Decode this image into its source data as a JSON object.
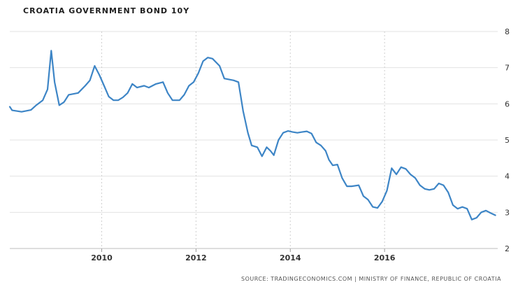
{
  "chart_data": {
    "type": "line",
    "title": "CROATIA GOVERNMENT BOND 10Y",
    "source": "SOURCE: TRADINGECONOMICS.COM | MINISTRY OF FINANCE, REPUBLIC OF CROATIA",
    "xlabel": "",
    "ylabel": "",
    "xlim": [
      2008.05,
      2017.7
    ],
    "ylim": [
      2,
      8
    ],
    "x_ticks": [
      2010,
      2012,
      2014,
      2016
    ],
    "x_tick_labels": [
      "2010",
      "2012",
      "2014",
      "2016"
    ],
    "y_ticks": [
      2,
      3,
      4,
      5,
      6,
      7,
      8
    ],
    "y_tick_labels": [
      "2",
      "3",
      "4",
      "5",
      "6",
      "7",
      "8"
    ],
    "grid": "vertical dashed, horizontal solid",
    "line_color": "#3d85c6",
    "series": [
      {
        "points": [
          [
            2008.05,
            5.92
          ],
          [
            2008.1,
            5.82
          ],
          [
            2008.3,
            5.78
          ],
          [
            2008.5,
            5.83
          ],
          [
            2008.6,
            5.95
          ],
          [
            2008.75,
            6.1
          ],
          [
            2008.85,
            6.4
          ],
          [
            2008.93,
            7.47
          ],
          [
            2009.0,
            6.6
          ],
          [
            2009.1,
            5.96
          ],
          [
            2009.2,
            6.05
          ],
          [
            2009.3,
            6.25
          ],
          [
            2009.5,
            6.3
          ],
          [
            2009.65,
            6.5
          ],
          [
            2009.75,
            6.65
          ],
          [
            2009.85,
            7.05
          ],
          [
            2009.95,
            6.8
          ],
          [
            2010.05,
            6.5
          ],
          [
            2010.15,
            6.2
          ],
          [
            2010.25,
            6.1
          ],
          [
            2010.35,
            6.1
          ],
          [
            2010.45,
            6.18
          ],
          [
            2010.55,
            6.3
          ],
          [
            2010.65,
            6.55
          ],
          [
            2010.75,
            6.45
          ],
          [
            2010.9,
            6.5
          ],
          [
            2011.0,
            6.45
          ],
          [
            2011.15,
            6.55
          ],
          [
            2011.3,
            6.6
          ],
          [
            2011.4,
            6.3
          ],
          [
            2011.5,
            6.1
          ],
          [
            2011.65,
            6.1
          ],
          [
            2011.75,
            6.25
          ],
          [
            2011.85,
            6.5
          ],
          [
            2011.95,
            6.6
          ],
          [
            2012.05,
            6.85
          ],
          [
            2012.15,
            7.18
          ],
          [
            2012.25,
            7.28
          ],
          [
            2012.35,
            7.25
          ],
          [
            2012.5,
            7.05
          ],
          [
            2012.6,
            6.7
          ],
          [
            2012.8,
            6.65
          ],
          [
            2012.9,
            6.6
          ],
          [
            2013.0,
            5.8
          ],
          [
            2013.1,
            5.2
          ],
          [
            2013.18,
            4.85
          ],
          [
            2013.3,
            4.8
          ],
          [
            2013.4,
            4.55
          ],
          [
            2013.5,
            4.8
          ],
          [
            2013.58,
            4.7
          ],
          [
            2013.65,
            4.58
          ],
          [
            2013.75,
            5.0
          ],
          [
            2013.85,
            5.2
          ],
          [
            2013.95,
            5.25
          ],
          [
            2014.05,
            5.22
          ],
          [
            2014.15,
            5.2
          ],
          [
            2014.25,
            5.22
          ],
          [
            2014.35,
            5.24
          ],
          [
            2014.45,
            5.18
          ],
          [
            2014.55,
            4.93
          ],
          [
            2014.65,
            4.85
          ],
          [
            2014.75,
            4.7
          ],
          [
            2014.82,
            4.45
          ],
          [
            2014.9,
            4.3
          ],
          [
            2015.0,
            4.32
          ],
          [
            2015.1,
            3.95
          ],
          [
            2015.2,
            3.72
          ],
          [
            2015.3,
            3.72
          ],
          [
            2015.45,
            3.75
          ],
          [
            2015.55,
            3.45
          ],
          [
            2015.65,
            3.35
          ],
          [
            2015.75,
            3.15
          ],
          [
            2015.85,
            3.12
          ],
          [
            2015.95,
            3.3
          ],
          [
            2016.05,
            3.6
          ],
          [
            2016.15,
            4.22
          ],
          [
            2016.25,
            4.05
          ],
          [
            2016.35,
            4.25
          ],
          [
            2016.45,
            4.2
          ],
          [
            2016.55,
            4.05
          ],
          [
            2016.65,
            3.95
          ],
          [
            2016.75,
            3.75
          ],
          [
            2016.85,
            3.65
          ],
          [
            2016.95,
            3.62
          ],
          [
            2017.05,
            3.65
          ],
          [
            2017.15,
            3.8
          ],
          [
            2017.25,
            3.75
          ],
          [
            2017.35,
            3.55
          ],
          [
            2017.45,
            3.2
          ],
          [
            2017.55,
            3.1
          ],
          [
            2017.65,
            3.15
          ],
          [
            2017.75,
            3.1
          ],
          [
            2017.85,
            2.8
          ],
          [
            2017.95,
            2.85
          ],
          [
            2018.05,
            3.0
          ],
          [
            2018.15,
            3.05
          ],
          [
            2018.25,
            2.98
          ],
          [
            2018.35,
            2.92
          ]
        ]
      }
    ]
  }
}
